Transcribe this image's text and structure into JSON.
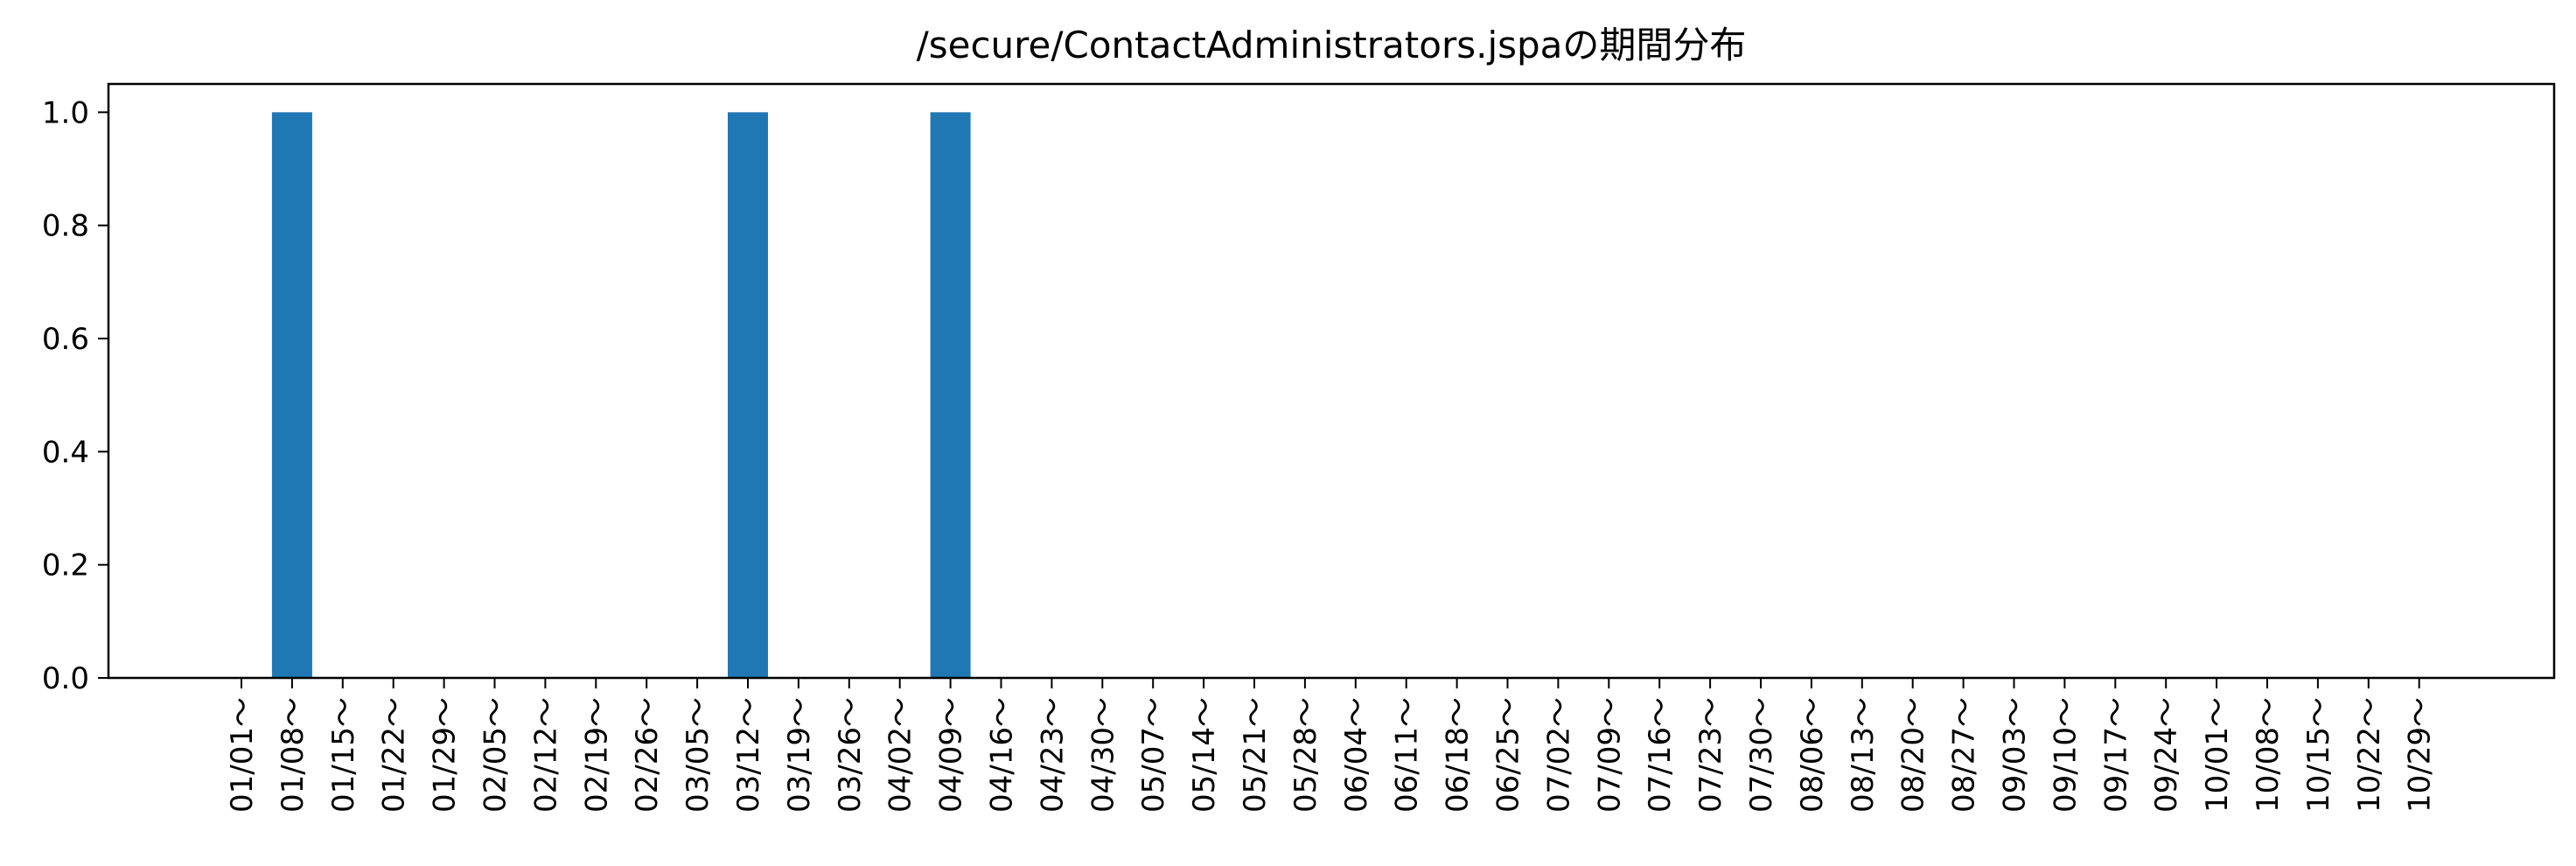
{
  "chart_data": {
    "type": "bar",
    "title": "/secure/ContactAdministrators.jspaの期間分布",
    "xlabel": "",
    "ylabel": "",
    "ylim": [
      0,
      1.05
    ],
    "yticks": [
      "0.0",
      "0.2",
      "0.4",
      "0.6",
      "0.8",
      "1.0"
    ],
    "ytick_values": [
      0,
      0.2,
      0.4,
      0.6,
      0.8,
      1.0
    ],
    "grid": false,
    "bar_color": "#1f77b4",
    "categories": [
      "01/01～",
      "01/08～",
      "01/15～",
      "01/22～",
      "01/29～",
      "02/05～",
      "02/12～",
      "02/19～",
      "02/26～",
      "03/05～",
      "03/12～",
      "03/19～",
      "03/26～",
      "04/02～",
      "04/09～",
      "04/16～",
      "04/23～",
      "04/30～",
      "05/07～",
      "05/14～",
      "05/21～",
      "05/28～",
      "06/04～",
      "06/11～",
      "06/18～",
      "06/25～",
      "07/02～",
      "07/09～",
      "07/16～",
      "07/23～",
      "07/30～",
      "08/06～",
      "08/13～",
      "08/20～",
      "08/27～",
      "09/03～",
      "09/10～",
      "09/17～",
      "09/24～",
      "10/01～",
      "10/08～",
      "10/15～",
      "10/22～",
      "10/29～"
    ],
    "values": [
      0,
      1,
      0,
      0,
      0,
      0,
      0,
      0,
      0,
      0,
      1,
      0,
      0,
      0,
      1,
      0,
      0,
      0,
      0,
      0,
      0,
      0,
      0,
      0,
      0,
      0,
      0,
      0,
      0,
      0,
      0,
      0,
      0,
      0,
      0,
      0,
      0,
      0,
      0,
      0,
      0,
      0,
      0,
      0
    ]
  }
}
